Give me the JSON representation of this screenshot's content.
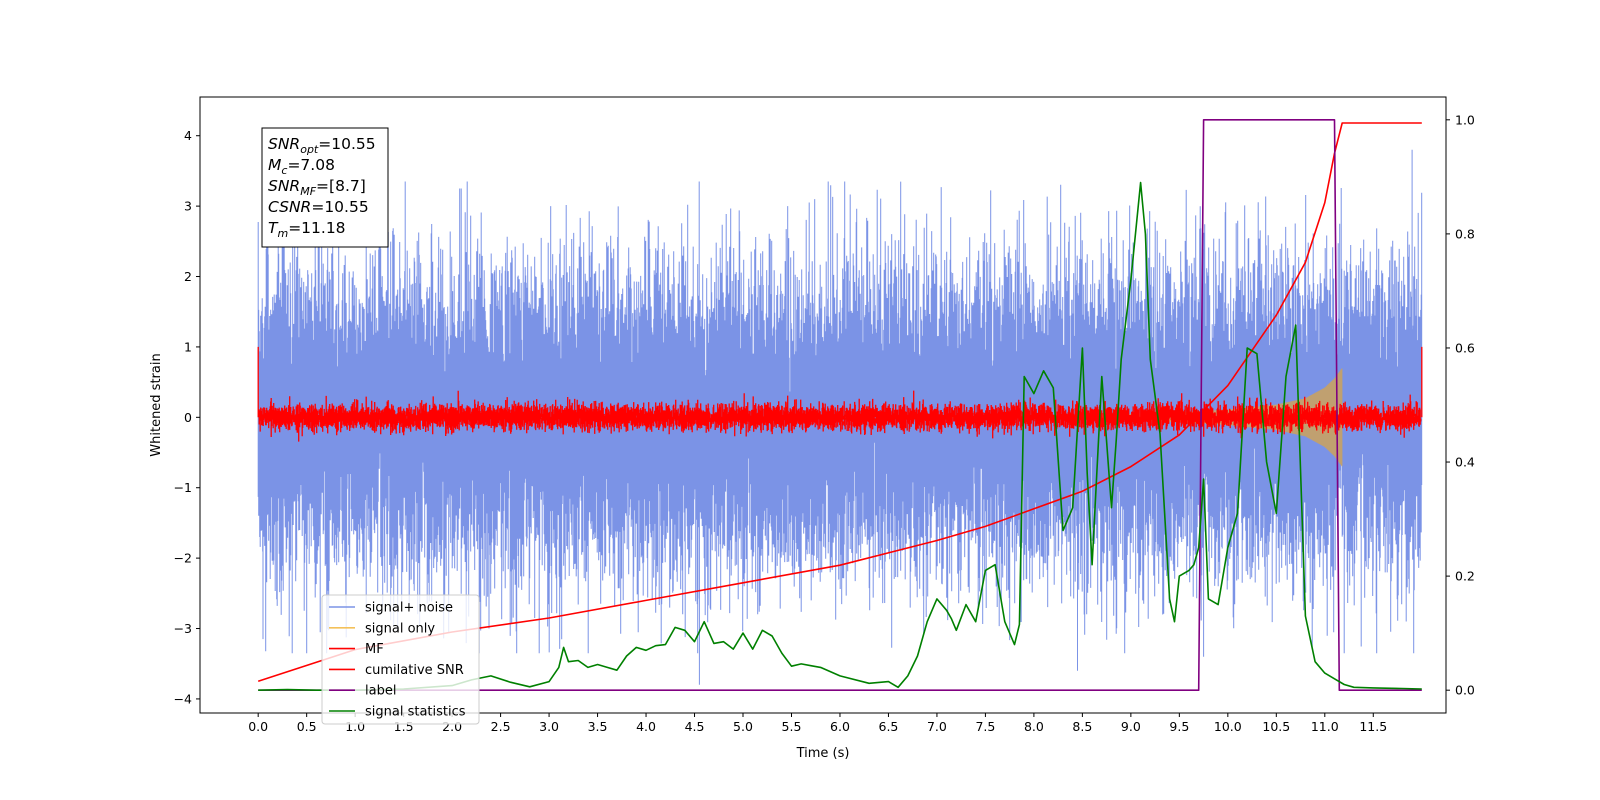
{
  "chart_data": {
    "type": "line",
    "title": "",
    "xlabel": "Time (s)",
    "ylabel": "Whitened strain",
    "y2label": "",
    "xlim": [
      -0.6,
      12.25
    ],
    "ylim": [
      -4.2,
      4.55
    ],
    "y2lim": [
      -0.04,
      1.04
    ],
    "xticks": [
      0.0,
      0.5,
      1.0,
      1.5,
      2.0,
      2.5,
      3.0,
      3.5,
      4.0,
      4.5,
      5.0,
      5.5,
      6.0,
      6.5,
      7.0,
      7.5,
      8.0,
      8.5,
      9.0,
      9.5,
      10.0,
      10.5,
      11.0,
      11.5
    ],
    "xtick_labels": [
      "0.0",
      "0.5",
      "1.0",
      "1.5",
      "2.0",
      "2.5",
      "3.0",
      "3.5",
      "4.0",
      "4.5",
      "5.0",
      "5.5",
      "6.0",
      "6.5",
      "7.0",
      "7.5",
      "8.0",
      "8.5",
      "9.0",
      "9.5",
      "10.0",
      "10.5",
      "11.0",
      "11.5"
    ],
    "yticks": [
      -4,
      -3,
      -2,
      -1,
      0,
      1,
      2,
      3,
      4
    ],
    "ytick_labels": [
      "−4",
      "−3",
      "−2",
      "−1",
      "0",
      "1",
      "2",
      "3",
      "4"
    ],
    "y2ticks": [
      0.0,
      0.2,
      0.4,
      0.6,
      0.8,
      1.0
    ],
    "y2tick_labels": [
      "0.0",
      "0.2",
      "0.4",
      "0.6",
      "0.8",
      "1.0"
    ],
    "grid": false,
    "legend_position": "bottom-left",
    "series": [
      {
        "name": "signal+ noise",
        "axis": "left",
        "color": "#7b93e6",
        "style": "dense noise, std≈1, spikes to ±3.3",
        "x_range": [
          0.0,
          12.0
        ],
        "std": 1.0
      },
      {
        "name": "signal only",
        "axis": "left",
        "color": "#f4c15a",
        "style": "chirp with envelope growing to merger",
        "envelope": {
          "x": [
            0.0,
            7.0,
            8.5,
            9.5,
            10.0,
            10.5,
            10.8,
            11.0,
            11.1,
            11.18
          ],
          "amplitude": [
            0.0,
            0.01,
            0.03,
            0.07,
            0.11,
            0.18,
            0.27,
            0.42,
            0.55,
            0.7
          ]
        }
      },
      {
        "name": "MF",
        "axis": "left",
        "color": "#ff0000",
        "style": "narrow noise band, std≈0.09; 1.0 at both ends",
        "x_range": [
          0.0,
          12.0
        ],
        "std": 0.09,
        "edge_value": 1.0
      },
      {
        "name": "cumilative SNR",
        "axis": "left",
        "color": "#ff0000",
        "x": [
          0.0,
          1.0,
          2.0,
          3.0,
          4.0,
          5.0,
          6.0,
          7.0,
          7.5,
          8.0,
          8.5,
          9.0,
          9.5,
          10.0,
          10.5,
          10.8,
          11.0,
          11.1,
          11.18,
          12.0
        ],
        "y": [
          -3.75,
          -3.3,
          -3.05,
          -2.85,
          -2.6,
          -2.35,
          -2.1,
          -1.75,
          -1.55,
          -1.3,
          -1.05,
          -0.7,
          -0.25,
          0.45,
          1.45,
          2.2,
          3.05,
          3.75,
          4.18,
          4.18
        ]
      },
      {
        "name": "label",
        "axis": "right",
        "color": "#800080",
        "x": [
          0.0,
          9.7,
          9.75,
          11.1,
          11.15,
          12.0
        ],
        "y": [
          0.0,
          0.0,
          1.0,
          1.0,
          0.0,
          0.0
        ]
      },
      {
        "name": "signal statistics",
        "axis": "right",
        "color": "#008000",
        "x": [
          0.0,
          0.3,
          0.6,
          1.0,
          1.5,
          2.0,
          2.2,
          2.4,
          2.6,
          2.8,
          3.0,
          3.1,
          3.15,
          3.2,
          3.3,
          3.4,
          3.5,
          3.6,
          3.7,
          3.8,
          3.9,
          4.0,
          4.1,
          4.2,
          4.3,
          4.4,
          4.5,
          4.6,
          4.7,
          4.8,
          4.9,
          5.0,
          5.1,
          5.2,
          5.3,
          5.4,
          5.5,
          5.6,
          5.7,
          5.8,
          6.0,
          6.3,
          6.5,
          6.6,
          6.7,
          6.8,
          6.9,
          7.0,
          7.1,
          7.15,
          7.2,
          7.3,
          7.4,
          7.5,
          7.6,
          7.7,
          7.8,
          7.85,
          7.9,
          8.0,
          8.1,
          8.2,
          8.3,
          8.4,
          8.5,
          8.55,
          8.6,
          8.7,
          8.8,
          8.85,
          8.9,
          9.0,
          9.1,
          9.15,
          9.2,
          9.3,
          9.4,
          9.45,
          9.5,
          9.6,
          9.65,
          9.7,
          9.75,
          9.8,
          9.9,
          10.0,
          10.1,
          10.2,
          10.3,
          10.4,
          10.5,
          10.6,
          10.7,
          10.8,
          10.9,
          11.0,
          11.1,
          11.2,
          11.3,
          11.5,
          11.8,
          12.0
        ],
        "y": [
          0.0,
          0.001,
          0.0,
          0.0,
          0.002,
          0.008,
          0.018,
          0.025,
          0.014,
          0.006,
          0.015,
          0.04,
          0.075,
          0.05,
          0.052,
          0.04,
          0.045,
          0.04,
          0.035,
          0.06,
          0.075,
          0.07,
          0.078,
          0.08,
          0.11,
          0.105,
          0.085,
          0.12,
          0.082,
          0.085,
          0.072,
          0.1,
          0.072,
          0.105,
          0.095,
          0.065,
          0.042,
          0.046,
          0.043,
          0.04,
          0.025,
          0.012,
          0.015,
          0.005,
          0.025,
          0.06,
          0.12,
          0.16,
          0.14,
          0.125,
          0.105,
          0.15,
          0.12,
          0.21,
          0.22,
          0.12,
          0.08,
          0.115,
          0.55,
          0.52,
          0.56,
          0.53,
          0.28,
          0.32,
          0.6,
          0.38,
          0.22,
          0.55,
          0.32,
          0.44,
          0.58,
          0.72,
          0.89,
          0.8,
          0.58,
          0.45,
          0.16,
          0.12,
          0.2,
          0.21,
          0.22,
          0.25,
          0.37,
          0.16,
          0.15,
          0.25,
          0.31,
          0.6,
          0.59,
          0.4,
          0.31,
          0.55,
          0.64,
          0.13,
          0.05,
          0.03,
          0.02,
          0.01,
          0.005,
          0.004,
          0.003,
          0.002
        ]
      }
    ],
    "annotation": {
      "lines": [
        {
          "sym": "SNR",
          "sub": "opt",
          "val": "=10.55"
        },
        {
          "sym": "M",
          "sub": "c",
          "val": "=7.08"
        },
        {
          "sym": "SNR",
          "sub": "MF",
          "val": "=[8.7]"
        },
        {
          "sym": "CSNR",
          "sub": "",
          "val": "=10.55"
        },
        {
          "sym": "T",
          "sub": "m",
          "val": "=11.18"
        }
      ]
    }
  }
}
